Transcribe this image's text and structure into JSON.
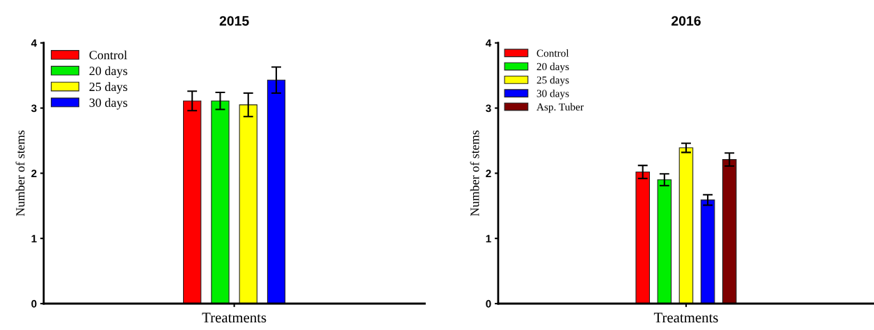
{
  "chart_data": [
    {
      "type": "bar",
      "title": "2015",
      "xlabel": "Treatments",
      "ylabel": "Number of stems",
      "categories": [
        null
      ],
      "ylim": [
        0,
        4
      ],
      "yticks": [
        0,
        1,
        2,
        3,
        4
      ],
      "legend": "top left",
      "grid": false,
      "series": [
        {
          "name": "Control",
          "color": "#ff0000",
          "values": [
            3.11
          ],
          "errors": [
            0.15
          ]
        },
        {
          "name": "20 days",
          "color": "#00ee00",
          "values": [
            3.11
          ],
          "errors": [
            0.13
          ]
        },
        {
          "name": "25 days",
          "color": "#ffff00",
          "values": [
            3.05
          ],
          "errors": [
            0.18
          ]
        },
        {
          "name": "30 days",
          "color": "#0000ff",
          "values": [
            3.43
          ],
          "errors": [
            0.2
          ]
        }
      ]
    },
    {
      "type": "bar",
      "title": "2016",
      "xlabel": "Treatments",
      "ylabel": "Number of stems",
      "categories": [
        null
      ],
      "ylim": [
        0,
        4
      ],
      "yticks": [
        0,
        1,
        2,
        3,
        4
      ],
      "legend": "top left",
      "grid": false,
      "series": [
        {
          "name": "Control",
          "color": "#ff0000",
          "values": [
            2.02
          ],
          "errors": [
            0.1
          ]
        },
        {
          "name": "20 days",
          "color": "#00ee00",
          "values": [
            1.9
          ],
          "errors": [
            0.09
          ]
        },
        {
          "name": "25 days",
          "color": "#ffff00",
          "values": [
            2.39
          ],
          "errors": [
            0.07
          ]
        },
        {
          "name": "30 days",
          "color": "#0000ff",
          "values": [
            1.59
          ],
          "errors": [
            0.08
          ]
        },
        {
          "name": "Asp. Tuber",
          "color": "#7f0000",
          "values": [
            2.21
          ],
          "errors": [
            0.1
          ]
        }
      ]
    }
  ]
}
